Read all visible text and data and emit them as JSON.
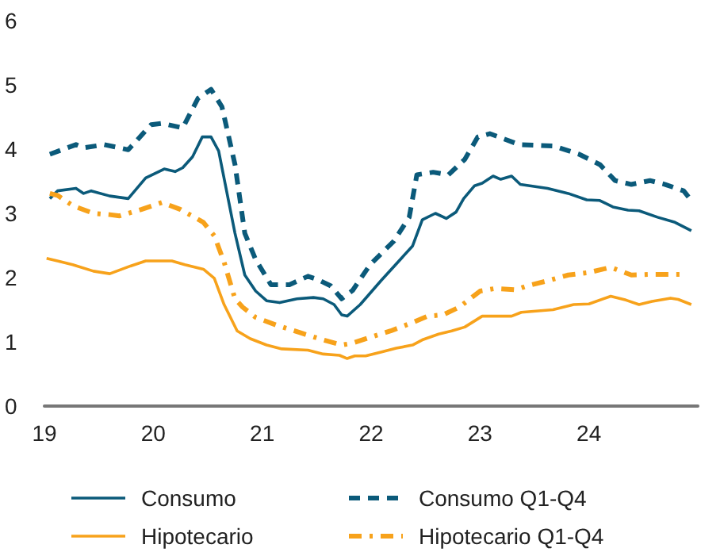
{
  "chart_data": {
    "type": "line",
    "xlim": [
      19,
      25
    ],
    "xticks": [
      19,
      20,
      21,
      22,
      23,
      24
    ],
    "ylim": [
      0,
      6
    ],
    "yticks": [
      0,
      1,
      2,
      3,
      4,
      5,
      6
    ],
    "grid": false,
    "legend": "bottom",
    "marker": "none",
    "series": [
      {
        "name": "Consumo",
        "color": "#0b5a7a",
        "line_style": "solid",
        "x": [
          19.05,
          19.12,
          19.29,
          19.36,
          19.43,
          19.6,
          19.77,
          19.93,
          20.1,
          20.2,
          20.27,
          20.36,
          20.45,
          20.53,
          20.6,
          20.75,
          20.84,
          20.94,
          21.04,
          21.16,
          21.32,
          21.47,
          21.56,
          21.66,
          21.73,
          21.78,
          21.9,
          22.09,
          22.38,
          22.47,
          22.59,
          22.69,
          22.78,
          22.85,
          22.95,
          23.02,
          23.12,
          23.19,
          23.29,
          23.37,
          23.62,
          23.81,
          23.98,
          24.1,
          24.22,
          24.36,
          24.46,
          24.63,
          24.79,
          24.94
        ],
        "values": [
          3.23,
          3.35,
          3.39,
          3.31,
          3.35,
          3.27,
          3.23,
          3.55,
          3.69,
          3.65,
          3.71,
          3.88,
          4.19,
          4.19,
          3.97,
          2.69,
          2.04,
          1.79,
          1.64,
          1.61,
          1.67,
          1.69,
          1.67,
          1.58,
          1.42,
          1.4,
          1.58,
          1.95,
          2.49,
          2.9,
          3.0,
          2.92,
          3.02,
          3.23,
          3.43,
          3.47,
          3.58,
          3.53,
          3.58,
          3.45,
          3.39,
          3.31,
          3.21,
          3.2,
          3.1,
          3.05,
          3.04,
          2.94,
          2.86,
          2.73
        ]
      },
      {
        "name": "Consumo Q1-Q4",
        "color": "#0b5a7a",
        "line_style": "dashed",
        "x": [
          19.05,
          19.29,
          19.36,
          19.55,
          19.77,
          19.98,
          20.08,
          20.27,
          20.41,
          20.53,
          20.63,
          20.75,
          20.84,
          20.94,
          21.08,
          21.25,
          21.42,
          21.51,
          21.63,
          21.73,
          21.83,
          21.99,
          22.21,
          22.35,
          22.42,
          22.57,
          22.71,
          22.86,
          22.98,
          23.09,
          23.36,
          23.67,
          23.91,
          24.1,
          24.24,
          24.39,
          24.56,
          24.7,
          24.87,
          24.94
        ],
        "values": [
          3.92,
          4.07,
          4.02,
          4.07,
          3.99,
          4.38,
          4.4,
          4.33,
          4.79,
          4.93,
          4.66,
          3.76,
          2.69,
          2.28,
          1.89,
          1.89,
          2.02,
          1.97,
          1.87,
          1.67,
          1.8,
          2.2,
          2.57,
          2.94,
          3.6,
          3.64,
          3.6,
          3.84,
          4.19,
          4.24,
          4.07,
          4.05,
          3.92,
          3.76,
          3.51,
          3.45,
          3.51,
          3.45,
          3.35,
          3.2
        ]
      },
      {
        "name": "Hipotecario",
        "color": "#f7a21b",
        "line_style": "solid",
        "x": [
          19.02,
          19.12,
          19.26,
          19.45,
          19.6,
          19.79,
          19.93,
          20.17,
          20.29,
          20.46,
          20.56,
          20.65,
          20.77,
          20.89,
          21.04,
          21.18,
          21.42,
          21.56,
          21.71,
          21.78,
          21.85,
          21.95,
          22.09,
          22.23,
          22.38,
          22.47,
          22.62,
          22.74,
          22.86,
          23.02,
          23.29,
          23.38,
          23.67,
          23.86,
          24.0,
          24.2,
          24.34,
          24.46,
          24.58,
          24.75,
          24.82,
          24.94
        ],
        "values": [
          2.3,
          2.26,
          2.2,
          2.1,
          2.06,
          2.18,
          2.26,
          2.26,
          2.2,
          2.13,
          1.99,
          1.58,
          1.17,
          1.05,
          0.95,
          0.89,
          0.87,
          0.81,
          0.79,
          0.74,
          0.78,
          0.78,
          0.84,
          0.9,
          0.95,
          1.03,
          1.12,
          1.17,
          1.23,
          1.4,
          1.4,
          1.46,
          1.5,
          1.58,
          1.59,
          1.71,
          1.65,
          1.58,
          1.63,
          1.68,
          1.66,
          1.58
        ]
      },
      {
        "name": "Hipotecario Q1-Q4",
        "color": "#f7a21b",
        "line_style": "dashdot",
        "x": [
          19.05,
          19.12,
          19.26,
          19.45,
          19.6,
          19.69,
          19.89,
          20.08,
          20.25,
          20.46,
          20.56,
          20.65,
          20.75,
          20.82,
          20.94,
          21.13,
          21.37,
          21.56,
          21.73,
          21.83,
          21.99,
          22.18,
          22.38,
          22.52,
          22.66,
          22.81,
          23.0,
          23.14,
          23.33,
          23.43,
          23.62,
          23.81,
          24.0,
          24.2,
          24.39,
          24.58,
          24.84
        ],
        "values": [
          3.31,
          3.28,
          3.12,
          3.0,
          2.98,
          2.96,
          3.06,
          3.17,
          3.06,
          2.86,
          2.65,
          2.24,
          1.67,
          1.54,
          1.38,
          1.26,
          1.13,
          1.03,
          0.95,
          0.98,
          1.07,
          1.17,
          1.3,
          1.4,
          1.42,
          1.54,
          1.79,
          1.83,
          1.81,
          1.87,
          1.95,
          2.04,
          2.08,
          2.16,
          2.04,
          2.05,
          2.05
        ]
      }
    ]
  }
}
